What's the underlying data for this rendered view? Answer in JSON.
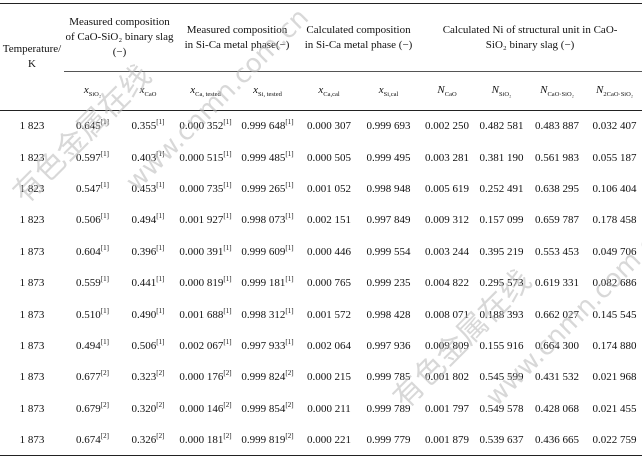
{
  "headers": {
    "temperature": "Temperature/ K",
    "measured_binary": "Measured composition of CaO-SiO₂ binary slag (−)",
    "measured_metal": "Measured composition in Si-Ca metal phase(−)",
    "calculated_metal": "Calculated composition in Si-Ca metal phase (−)",
    "calculated_n": "Calculated Ni of structural unit in CaO-SiO₂ binary slag (−)"
  },
  "subheaders": [
    {
      "base": "x",
      "sub": "SiO₂"
    },
    {
      "base": "x",
      "sub": "CaO"
    },
    {
      "base": "x",
      "sub": "Ca, tested"
    },
    {
      "base": "x",
      "sub": "Si, tested"
    },
    {
      "base": "x",
      "sub": "Ca,cal"
    },
    {
      "base": "x",
      "sub": "Si,cal"
    },
    {
      "base": "N",
      "sub": "CaO"
    },
    {
      "base": "N",
      "sub": "SiO₂"
    },
    {
      "base": "N",
      "sub": "CaO·SiO₂"
    },
    {
      "base": "N",
      "sub": "2CaO·SiO₂"
    }
  ],
  "rows": [
    {
      "t": "1 823",
      "xsio2": "0.645",
      "xsio2_ref": "[1]",
      "xcao": "0.355",
      "xcao_ref": "[1]",
      "xca_t": "0.000 352",
      "xca_t_ref": "[1]",
      "xsi_t": "0.999 648",
      "xsi_t_ref": "[1]",
      "xca_c": "0.000 307",
      "xsi_c": "0.999 693",
      "ncao": "0.002 250",
      "nsio2": "0.482 581",
      "ncs": "0.483 887",
      "nc2s": "0.032 407"
    },
    {
      "t": "1 823",
      "xsio2": "0.597",
      "xsio2_ref": "[1]",
      "xcao": "0.403",
      "xcao_ref": "[1]",
      "xca_t": "0.000 515",
      "xca_t_ref": "[1]",
      "xsi_t": "0.999 485",
      "xsi_t_ref": "[1]",
      "xca_c": "0.000 505",
      "xsi_c": "0.999 495",
      "ncao": "0.003 281",
      "nsio2": "0.381 190",
      "ncs": "0.561 983",
      "nc2s": "0.055 187"
    },
    {
      "t": "1 823",
      "xsio2": "0.547",
      "xsio2_ref": "[1]",
      "xcao": "0.453",
      "xcao_ref": "[1]",
      "xca_t": "0.000 735",
      "xca_t_ref": "[1]",
      "xsi_t": "0.999 265",
      "xsi_t_ref": "[1]",
      "xca_c": "0.001 052",
      "xsi_c": "0.998 948",
      "ncao": "0.005 619",
      "nsio2": "0.252 491",
      "ncs": "0.638 295",
      "nc2s": "0.106 404"
    },
    {
      "t": "1 823",
      "xsio2": "0.506",
      "xsio2_ref": "[1]",
      "xcao": "0.494",
      "xcao_ref": "[1]",
      "xca_t": "0.001 927",
      "xca_t_ref": "[1]",
      "xsi_t": "0.998 073",
      "xsi_t_ref": "[1]",
      "xca_c": "0.002 151",
      "xsi_c": "0.997 849",
      "ncao": "0.009 312",
      "nsio2": "0.157 099",
      "ncs": "0.659 787",
      "nc2s": "0.178 458"
    },
    {
      "t": "1 873",
      "xsio2": "0.604",
      "xsio2_ref": "[1]",
      "xcao": "0.396",
      "xcao_ref": "[1]",
      "xca_t": "0.000 391",
      "xca_t_ref": "[1]",
      "xsi_t": "0.999 609",
      "xsi_t_ref": "[1]",
      "xca_c": "0.000 446",
      "xsi_c": "0.999 554",
      "ncao": "0.003 244",
      "nsio2": "0.395 219",
      "ncs": "0.553 453",
      "nc2s": "0.049 706"
    },
    {
      "t": "1 873",
      "xsio2": "0.559",
      "xsio2_ref": "[1]",
      "xcao": "0.441",
      "xcao_ref": "[1]",
      "xca_t": "0.000 819",
      "xca_t_ref": "[1]",
      "xsi_t": "0.999 181",
      "xsi_t_ref": "[1]",
      "xca_c": "0.000 765",
      "xsi_c": "0.999 235",
      "ncao": "0.004 822",
      "nsio2": "0.295 573",
      "ncs": "0.619 331",
      "nc2s": "0.082 686"
    },
    {
      "t": "1 873",
      "xsio2": "0.510",
      "xsio2_ref": "[1]",
      "xcao": "0.490",
      "xcao_ref": "[1]",
      "xca_t": "0.001 688",
      "xca_t_ref": "[1]",
      "xsi_t": "0.998 312",
      "xsi_t_ref": "[1]",
      "xca_c": "0.001 572",
      "xsi_c": "0.998 428",
      "ncao": "0.008 071",
      "nsio2": "0.188 393",
      "ncs": "0.662 027",
      "nc2s": "0.145 545"
    },
    {
      "t": "1 873",
      "xsio2": "0.494",
      "xsio2_ref": "[1]",
      "xcao": "0.506",
      "xcao_ref": "[1]",
      "xca_t": "0.002 067",
      "xca_t_ref": "[1]",
      "xsi_t": "0.997 933",
      "xsi_t_ref": "[1]",
      "xca_c": "0.002 064",
      "xsi_c": "0.997 936",
      "ncao": "0.009 809",
      "nsio2": "0.155 916",
      "ncs": "0.664 300",
      "nc2s": "0.174 880"
    },
    {
      "t": "1 873",
      "xsio2": "0.677",
      "xsio2_ref": "[2]",
      "xcao": "0.323",
      "xcao_ref": "[2]",
      "xca_t": "0.000 176",
      "xca_t_ref": "[2]",
      "xsi_t": "0.999 824",
      "xsi_t_ref": "[2]",
      "xca_c": "0.000 215",
      "xsi_c": "0.999 785",
      "ncao": "0.001 802",
      "nsio2": "0.545 599",
      "ncs": "0.431 532",
      "nc2s": "0.021 968"
    },
    {
      "t": "1 873",
      "xsio2": "0.679",
      "xsio2_ref": "[2]",
      "xcao": "0.320",
      "xcao_ref": "[2]",
      "xca_t": "0.000 146",
      "xca_t_ref": "[2]",
      "xsi_t": "0.999 854",
      "xsi_t_ref": "[2]",
      "xca_c": "0.000 211",
      "xsi_c": "0.999 789",
      "ncao": "0.001 797",
      "nsio2": "0.549 578",
      "ncs": "0.428 068",
      "nc2s": "0.021 455"
    },
    {
      "t": "1 873",
      "xsio2": "0.674",
      "xsio2_ref": "[2]",
      "xcao": "0.326",
      "xcao_ref": "[2]",
      "xca_t": "0.000 181",
      "xca_t_ref": "[2]",
      "xsi_t": "0.999 819",
      "xsi_t_ref": "[2]",
      "xca_c": "0.000 221",
      "xsi_c": "0.999 779",
      "ncao": "0.001 879",
      "nsio2": "0.539 637",
      "ncs": "0.436 665",
      "nc2s": "0.022 759"
    }
  ],
  "watermark": [
    "有色金属在线",
    "www.cnmn.com.cn"
  ]
}
